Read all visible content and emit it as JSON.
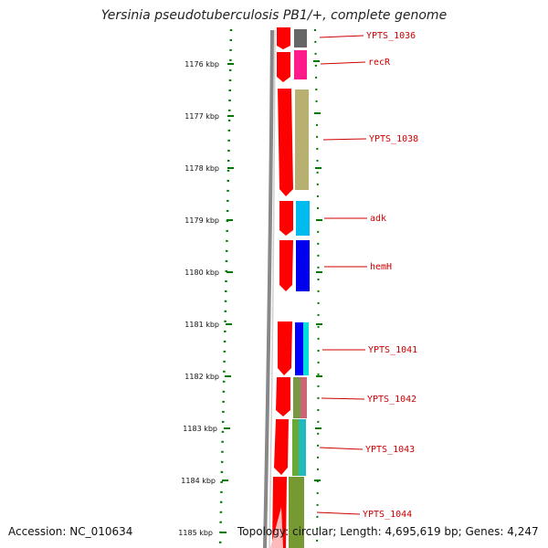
{
  "title": "Yersinia pseudotuberculosis PB1/+, complete genome",
  "ticks": [
    "1176 kbp",
    "1177 kbp",
    "1178 kbp",
    "1179 kbp",
    "1180 kbp",
    "1181 kbp",
    "1182 kbp",
    "1183 kbp",
    "1184 kbp",
    "1185 kbp"
  ],
  "genes": [
    "YPTS_1036",
    "recR",
    "YPTS_1038",
    "adk",
    "hemH",
    "YPTS_1041",
    "YPTS_1042",
    "YPTS_1043",
    "YPTS_1044"
  ],
  "colors": {
    "cds": "#ff0000",
    "label": "#cc0000",
    "tick": "#007700",
    "backbone": "#888888",
    "yp1036": "#666666",
    "recR": "#ff1a8c",
    "yp1038": "#b8b070",
    "adk": "#00bbee",
    "hemH": "#0000ee",
    "yp1041": "#0000ff",
    "yp1041b": "#00dddd",
    "yp1042": "#779944",
    "yp1042b": "#cc6677",
    "yp1043": "#66aa33",
    "yp1043b": "#22bbbb",
    "yp1044": "#779933"
  },
  "footer": {
    "accession": "Accession: NC_010634",
    "stats": "Topology: circular; Length: 4,695,619 bp; Genes: 4,247"
  }
}
